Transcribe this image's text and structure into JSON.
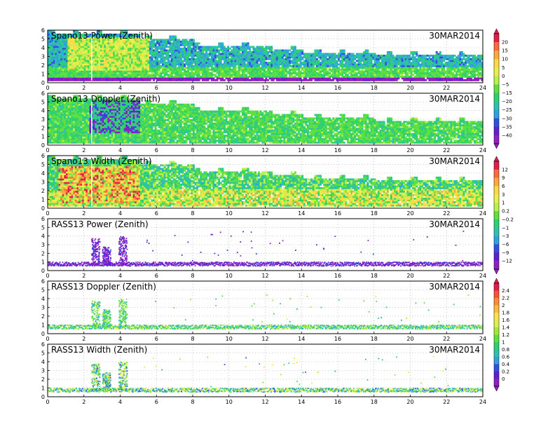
{
  "chart_data": [
    {
      "type": "heatmap",
      "title": "Spano13 Power (Zenith)",
      "date": "30MAR2014",
      "x_ticks": [
        0,
        2,
        4,
        6,
        8,
        10,
        12,
        14,
        16,
        18,
        20,
        22,
        24
      ],
      "y_ticks": [
        0,
        1,
        2,
        3,
        4,
        5,
        6
      ],
      "xlim": [
        0,
        24
      ],
      "ylim": [
        0,
        6
      ],
      "colorbar": "power",
      "field": "power",
      "description_values": {
        "top_height_profile": [
          [
            0,
            5.6
          ],
          [
            2,
            5.8
          ],
          [
            5,
            5.7
          ],
          [
            6,
            5.0
          ],
          [
            7,
            5.0
          ],
          [
            8,
            4.2
          ],
          [
            10,
            4.0
          ],
          [
            12,
            3.8
          ],
          [
            13,
            3.6
          ],
          [
            14,
            3.3
          ],
          [
            18,
            3.1
          ],
          [
            22,
            3.0
          ],
          [
            24,
            2.8
          ]
        ]
      }
    },
    {
      "type": "heatmap",
      "title": "Spano13 Doppler (Zenith)",
      "date": "30MAR2014",
      "x_ticks": [
        0,
        2,
        4,
        6,
        8,
        10,
        12,
        14,
        16,
        18,
        20,
        22,
        24
      ],
      "y_ticks": [
        0,
        1,
        2,
        3,
        4,
        5,
        6
      ],
      "xlim": [
        0,
        24
      ],
      "ylim": [
        0,
        6
      ],
      "colorbar": "power",
      "field": "doppler"
    },
    {
      "type": "heatmap",
      "title": "Spano13 Width (Zenith)",
      "date": "30MAR2014",
      "x_ticks": [
        0,
        2,
        4,
        6,
        8,
        10,
        12,
        14,
        16,
        18,
        20,
        22,
        24
      ],
      "y_ticks": [
        0,
        1,
        2,
        3,
        4,
        5,
        6
      ],
      "xlim": [
        0,
        24
      ],
      "ylim": [
        0,
        6
      ],
      "colorbar": "width",
      "field": "width"
    },
    {
      "type": "heatmap",
      "title": "RASS13 Power (Zenith)",
      "date": "30MAR2014",
      "x_ticks": [
        0,
        2,
        4,
        6,
        8,
        10,
        12,
        14,
        16,
        18,
        20,
        22,
        24
      ],
      "y_ticks": [
        0,
        1,
        2,
        3,
        4,
        5,
        6
      ],
      "xlim": [
        0,
        24
      ],
      "ylim": [
        0,
        6
      ],
      "colorbar": "width",
      "field": "rass_power"
    },
    {
      "type": "heatmap",
      "title": "RASS13 Doppler (Zenith)",
      "date": "30MAR2014",
      "x_ticks": [
        0,
        2,
        4,
        6,
        8,
        10,
        12,
        14,
        16,
        18,
        20,
        22,
        24
      ],
      "y_ticks": [
        0,
        1,
        2,
        3,
        4,
        5,
        6
      ],
      "xlim": [
        0,
        24
      ],
      "ylim": [
        0,
        6
      ],
      "colorbar": "rass",
      "field": "rass_doppler"
    },
    {
      "type": "heatmap",
      "title": "RASS13 Width (Zenith)",
      "date": "30MAR2014",
      "x_ticks": [
        0,
        2,
        4,
        6,
        8,
        10,
        12,
        14,
        16,
        18,
        20,
        22,
        24
      ],
      "y_ticks": [
        0,
        1,
        2,
        3,
        4,
        5,
        6
      ],
      "xlim": [
        0,
        24
      ],
      "ylim": [
        0,
        6
      ],
      "colorbar": "rass",
      "field": "rass_width"
    }
  ],
  "colorbars": {
    "power": {
      "labels": [
        "20",
        "15",
        "10",
        "5",
        "0",
        "−5",
        "−15",
        "−20",
        "−25",
        "−30",
        "−35",
        "−40"
      ],
      "colors": [
        "#e0204a",
        "#ff6a3a",
        "#ffa840",
        "#ffd84a",
        "#e8f050",
        "#b8f050",
        "#60e040",
        "#30d070",
        "#30c0b0",
        "#30a0e0",
        "#3050e0",
        "#6020d0",
        "#9020c0"
      ]
    },
    "width": {
      "labels": [
        "12",
        "9",
        "6",
        "3",
        "1",
        "0.2",
        "−0.2",
        "−1",
        "−3",
        "−6",
        "−9",
        "−12"
      ],
      "colors": [
        "#e0204a",
        "#ff6a3a",
        "#ffa840",
        "#ffd84a",
        "#e8f050",
        "#b8f050",
        "#60e040",
        "#30d070",
        "#30c0b0",
        "#30a0e0",
        "#3050e0",
        "#6020d0",
        "#9020c0"
      ]
    },
    "rass": {
      "labels": [
        "2.4",
        "2.2",
        "2",
        "1.8",
        "1.6",
        "1.4",
        "1.2",
        "1",
        "0.8",
        "0.6",
        "0.4",
        "0.2",
        "0"
      ],
      "colors": [
        "#e0204a",
        "#ff5030",
        "#ff8a3a",
        "#ffb840",
        "#ffe050",
        "#d8f050",
        "#a0e840",
        "#60e040",
        "#30d070",
        "#30c0b0",
        "#30a0e0",
        "#3050e0",
        "#6020d0",
        "#9020c0"
      ]
    }
  }
}
